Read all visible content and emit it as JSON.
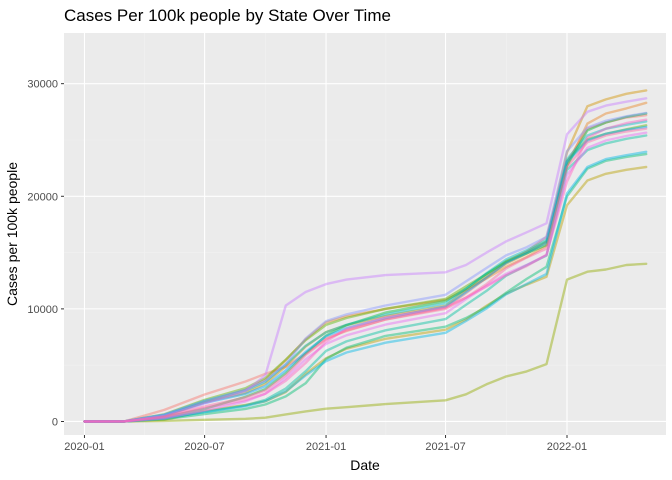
{
  "chart_data": {
    "type": "line",
    "title": "Cases Per 100k people by State Over Time",
    "xlabel": "Date",
    "ylabel": "Cases per 100k people",
    "x_ticks": [
      "2020-01",
      "2020-07",
      "2021-01",
      "2021-07",
      "2022-01"
    ],
    "x_range": [
      "2019-12-01",
      "2022-05-31"
    ],
    "y_ticks": [
      0,
      10000,
      20000,
      30000
    ],
    "ylim": [
      -1200,
      34500
    ],
    "grid": true,
    "legend": "none",
    "x": [
      "2020-01-01",
      "2020-03-01",
      "2020-05-01",
      "2020-07-01",
      "2020-09-01",
      "2020-10-01",
      "2020-11-01",
      "2020-12-01",
      "2021-01-01",
      "2021-02-01",
      "2021-04-01",
      "2021-07-01",
      "2021-08-01",
      "2021-09-01",
      "2021-10-01",
      "2021-11-01",
      "2021-12-01",
      "2022-01-01",
      "2022-02-01",
      "2022-03-01",
      "2022-04-01",
      "2022-05-01"
    ],
    "series": [
      {
        "color": "#F8766D",
        "values": [
          0,
          5,
          1030,
          2400,
          3550,
          4230,
          4850,
          6030,
          7370,
          8040,
          9070,
          10100,
          11400,
          12750,
          14150,
          15100,
          16400,
          23050,
          26000,
          26550,
          27000,
          27200
        ]
      },
      {
        "color": "#E88526",
        "values": [
          0,
          4,
          470,
          1700,
          2800,
          3700,
          5450,
          7300,
          8810,
          9340,
          10000,
          10800,
          11690,
          12700,
          13750,
          14600,
          15600,
          22700,
          26450,
          27350,
          27800,
          28300
        ]
      },
      {
        "color": "#D39200",
        "values": [
          0,
          3,
          530,
          1720,
          2540,
          3350,
          4900,
          6660,
          7950,
          8550,
          9360,
          10270,
          11630,
          12900,
          14030,
          14900,
          15930,
          23900,
          28000,
          28600,
          29100,
          29400
        ]
      },
      {
        "color": "#B79F00",
        "values": [
          0,
          5,
          150,
          930,
          1470,
          1790,
          2620,
          4220,
          5620,
          6460,
          7340,
          8150,
          9050,
          10270,
          11360,
          12150,
          12850,
          19200,
          21400,
          22000,
          22350,
          22600
        ]
      },
      {
        "color": "#93AA00",
        "values": [
          0,
          4,
          50,
          150,
          240,
          340,
          630,
          900,
          1140,
          1270,
          1540,
          1880,
          2410,
          3300,
          4000,
          4450,
          5100,
          12600,
          13300,
          13500,
          13900,
          14000
        ]
      },
      {
        "color": "#5EB300",
        "values": [
          0,
          5,
          640,
          1920,
          2960,
          3840,
          5500,
          7220,
          8580,
          9190,
          10010,
          10890,
          12000,
          13100,
          14250,
          15050,
          16000,
          23150,
          25050,
          25550,
          25950,
          26300
        ]
      },
      {
        "color": "#00BA38",
        "values": [
          0,
          3,
          390,
          1120,
          2190,
          2880,
          4290,
          6040,
          7640,
          8560,
          9670,
          10690,
          11780,
          13110,
          14170,
          14940,
          15670,
          22720,
          25850,
          26550,
          27050,
          27350
        ]
      },
      {
        "color": "#00BF74",
        "values": [
          0,
          4,
          200,
          660,
          1120,
          1510,
          2230,
          3390,
          5550,
          6550,
          7600,
          8420,
          9190,
          10170,
          11450,
          12660,
          13740,
          20000,
          22450,
          23150,
          23500,
          23750
        ]
      },
      {
        "color": "#00C19F",
        "values": [
          0,
          5,
          260,
          840,
          1430,
          1920,
          2930,
          4460,
          6270,
          7110,
          8100,
          9090,
          10360,
          11600,
          12960,
          13880,
          14740,
          22340,
          24100,
          24700,
          25100,
          25400
        ]
      },
      {
        "color": "#00BFC4",
        "values": [
          0,
          4,
          600,
          1830,
          2740,
          3520,
          5060,
          6710,
          7920,
          8590,
          9480,
          10500,
          11780,
          13170,
          14400,
          15210,
          16120,
          23300,
          25400,
          26000,
          26350,
          26650
        ]
      },
      {
        "color": "#00B8E7",
        "values": [
          0,
          3,
          280,
          830,
          1360,
          1800,
          2680,
          4090,
          5360,
          6130,
          7000,
          7880,
          8920,
          10030,
          11300,
          12210,
          13100,
          20250,
          22600,
          23300,
          23650,
          23950
        ]
      },
      {
        "color": "#00A9FF",
        "values": [
          0,
          4,
          550,
          1640,
          2450,
          3130,
          4540,
          6170,
          7570,
          8300,
          9170,
          10220,
          11480,
          12790,
          14090,
          14970,
          15890,
          23050,
          24950,
          25550,
          25900,
          26150
        ]
      },
      {
        "color": "#8494FF",
        "values": [
          0,
          5,
          620,
          1800,
          2830,
          3620,
          5100,
          7370,
          8910,
          9510,
          10300,
          11250,
          12440,
          13630,
          14760,
          15480,
          16380,
          24000,
          26100,
          26700,
          27100,
          27400
        ]
      },
      {
        "color": "#C77CFF",
        "values": [
          0,
          4,
          500,
          1600,
          2700,
          4100,
          10300,
          11500,
          12200,
          12600,
          13000,
          13250,
          13900,
          15000,
          16000,
          16800,
          17600,
          25500,
          27500,
          28050,
          28400,
          28700
        ]
      },
      {
        "color": "#E76BF3",
        "values": [
          0,
          3,
          280,
          980,
          1780,
          2470,
          3860,
          5520,
          6890,
          7650,
          8600,
          9620,
          10870,
          12050,
          13120,
          13910,
          14780,
          21900,
          24300,
          24950,
          25350,
          25650
        ]
      },
      {
        "color": "#FF61C3",
        "values": [
          0,
          5,
          370,
          1200,
          1900,
          2460,
          3620,
          5190,
          7100,
          8230,
          9240,
          10140,
          11000,
          12000,
          13000,
          13800,
          14800,
          21300,
          25200,
          26000,
          26500,
          26800
        ]
      },
      {
        "color": "#FF67A4",
        "values": [
          0,
          4,
          440,
          1340,
          2120,
          2750,
          4100,
          5900,
          7300,
          8100,
          9050,
          10000,
          11000,
          12200,
          13600,
          14550,
          15350,
          22600,
          24800,
          25400,
          25750,
          26000
        ]
      }
    ]
  }
}
